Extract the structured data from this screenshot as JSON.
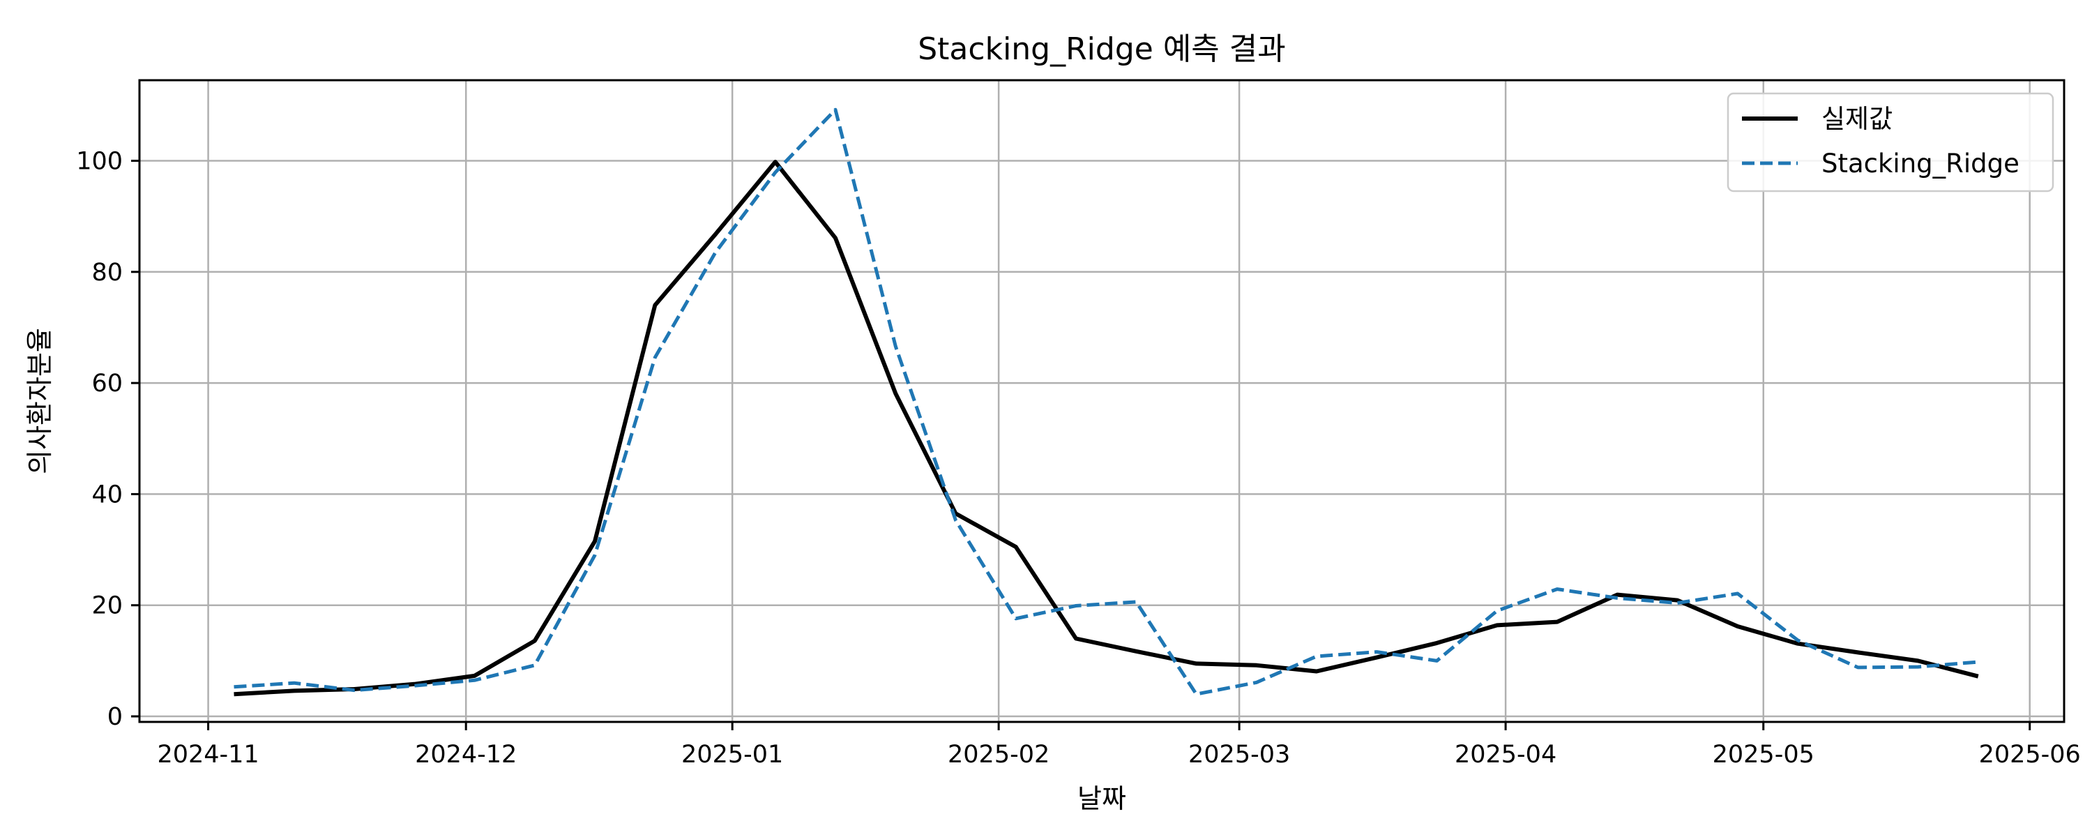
{
  "chart_data": {
    "type": "line",
    "title": "Stacking_Ridge 예측 결과",
    "xlabel": "날짜",
    "ylabel": "의사환자분율",
    "x_ticks": [
      "2024-11-01",
      "2024-12-01",
      "2025-01-01",
      "2025-02-01",
      "2025-03-01",
      "2025-04-01",
      "2025-05-01",
      "2025-06-01"
    ],
    "x_tick_labels": [
      "2024-11",
      "2024-12",
      "2025-01",
      "2025-02",
      "2025-03",
      "2025-04",
      "2025-05",
      "2025-06"
    ],
    "xlim": [
      "2024-10-24",
      "2025-06-05"
    ],
    "y_ticks": [
      0,
      20,
      40,
      60,
      80,
      100
    ],
    "ylim": [
      -1,
      114.5
    ],
    "grid": true,
    "legend_position": "top-right",
    "x": [
      "2024-11-04",
      "2024-11-11",
      "2024-11-18",
      "2024-11-25",
      "2024-12-02",
      "2024-12-09",
      "2024-12-16",
      "2024-12-23",
      "2024-12-30",
      "2025-01-06",
      "2025-01-13",
      "2025-01-20",
      "2025-01-27",
      "2025-02-03",
      "2025-02-10",
      "2025-02-17",
      "2025-02-24",
      "2025-03-03",
      "2025-03-10",
      "2025-03-17",
      "2025-03-24",
      "2025-03-31",
      "2025-04-07",
      "2025-04-14",
      "2025-04-21",
      "2025-04-28",
      "2025-05-05",
      "2025-05-12",
      "2025-05-19",
      "2025-05-26"
    ],
    "series": [
      {
        "name": "실제값",
        "color": "#000000",
        "dash": "solid",
        "values": [
          4.0,
          4.6,
          4.9,
          5.8,
          7.3,
          13.6,
          31.5,
          74.0,
          86.7,
          99.8,
          86.1,
          58.1,
          36.5,
          30.5,
          14.0,
          11.7,
          9.5,
          9.2,
          8.1,
          10.6,
          13.2,
          16.4,
          17.0,
          21.9,
          20.9,
          16.2,
          13.1,
          11.5,
          10.0,
          7.2
        ]
      },
      {
        "name": "Stacking_Ridge",
        "color": "#1f77b4",
        "dash": "dashed",
        "values": [
          5.3,
          6.0,
          4.7,
          5.5,
          6.5,
          9.2,
          29.0,
          64.6,
          83.4,
          97.9,
          109.2,
          66.6,
          35.3,
          17.6,
          19.9,
          20.6,
          4.0,
          6.1,
          10.8,
          11.6,
          10.0,
          19.0,
          22.9,
          21.3,
          20.4,
          22.1,
          13.7,
          8.8,
          8.9,
          9.8
        ]
      }
    ]
  }
}
